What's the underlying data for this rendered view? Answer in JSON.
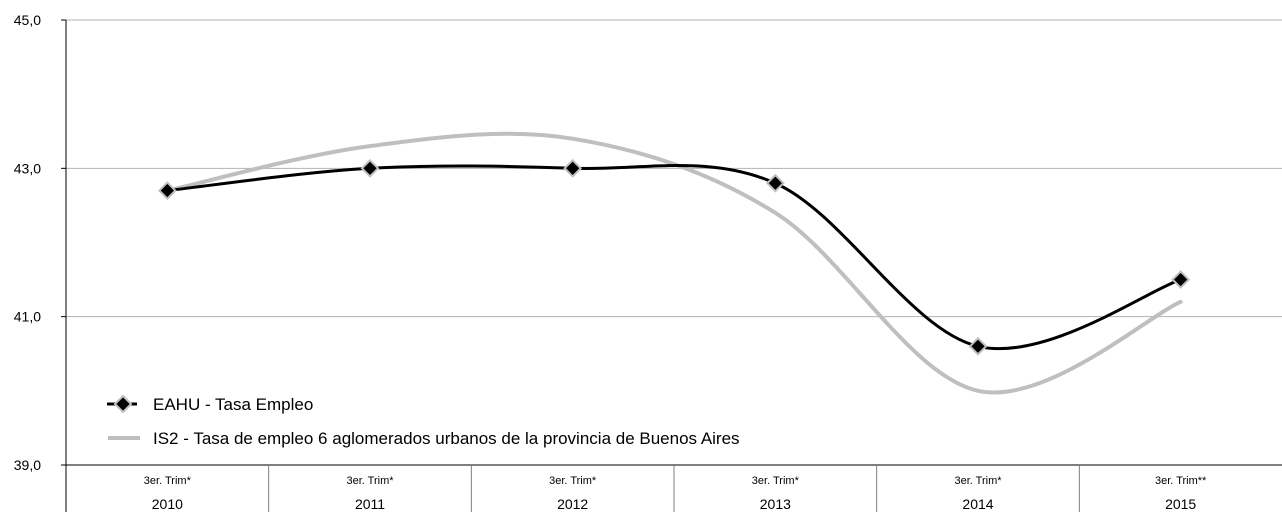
{
  "chart_data": {
    "type": "line",
    "categories": [
      {
        "period": "3er. Trim*",
        "year": "2010"
      },
      {
        "period": "3er. Trim*",
        "year": "2011"
      },
      {
        "period": "3er. Trim*",
        "year": "2012"
      },
      {
        "period": "3er. Trim*",
        "year": "2013"
      },
      {
        "period": "3er. Trim*",
        "year": "2014"
      },
      {
        "period": "3er. Trim**",
        "year": "2015"
      }
    ],
    "series": [
      {
        "name": "EAHU -  Tasa Empleo",
        "values": [
          42.7,
          43.0,
          43.0,
          42.8,
          40.6,
          41.5
        ],
        "color": "#000000",
        "marker": "diamond"
      },
      {
        "name": "IS2 - Tasa de empleo 6 aglomerados urbanos de la provincia de Buenos Aires",
        "values": [
          42.7,
          43.3,
          43.4,
          42.4,
          40.0,
          41.2
        ],
        "color": "#bfbfbf",
        "marker": "none"
      }
    ],
    "ylim": [
      39.0,
      45.0
    ],
    "yticks": [
      "39,0",
      "41,0",
      "43,0",
      "45,0"
    ],
    "title": "",
    "xlabel": "",
    "ylabel": "",
    "grid": true,
    "legend_position": "bottom-left"
  }
}
